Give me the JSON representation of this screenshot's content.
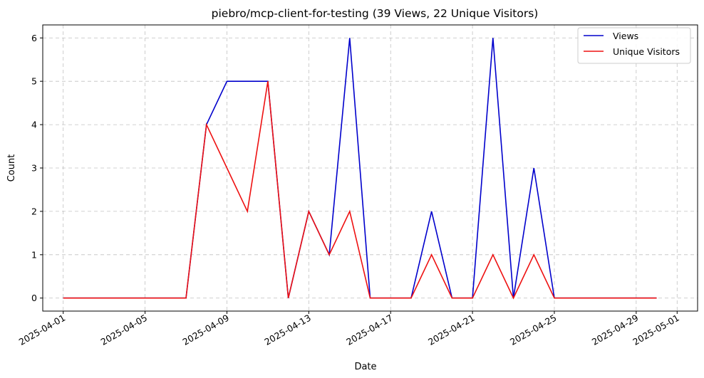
{
  "chart_data": {
    "type": "line",
    "title": "piebro/mcp-client-for-testing (39 Views, 22 Unique Visitors)",
    "xlabel": "Date",
    "ylabel": "Count",
    "x": [
      "2025-04-01",
      "2025-04-02",
      "2025-04-03",
      "2025-04-04",
      "2025-04-05",
      "2025-04-06",
      "2025-04-07",
      "2025-04-08",
      "2025-04-09",
      "2025-04-10",
      "2025-04-11",
      "2025-04-12",
      "2025-04-13",
      "2025-04-14",
      "2025-04-15",
      "2025-04-16",
      "2025-04-17",
      "2025-04-18",
      "2025-04-19",
      "2025-04-20",
      "2025-04-21",
      "2025-04-22",
      "2025-04-23",
      "2025-04-24",
      "2025-04-25",
      "2025-04-26",
      "2025-04-27",
      "2025-04-28",
      "2025-04-29",
      "2025-04-30"
    ],
    "series": [
      {
        "name": "Views",
        "color": "#0000cc",
        "values": [
          0,
          0,
          0,
          0,
          0,
          0,
          0,
          4,
          5,
          5,
          5,
          0,
          2,
          1,
          6,
          0,
          0,
          0,
          2,
          0,
          0,
          6,
          0,
          3,
          0,
          0,
          0,
          0,
          0,
          0
        ]
      },
      {
        "name": "Unique Visitors",
        "color": "#ee1111",
        "values": [
          0,
          0,
          0,
          0,
          0,
          0,
          0,
          4,
          3,
          2,
          5,
          0,
          2,
          1,
          2,
          0,
          0,
          0,
          1,
          0,
          0,
          1,
          0,
          1,
          0,
          0,
          0,
          0,
          0,
          0
        ]
      }
    ],
    "xticks": [
      "2025-04-01",
      "2025-04-05",
      "2025-04-09",
      "2025-04-13",
      "2025-04-17",
      "2025-04-21",
      "2025-04-25",
      "2025-04-29",
      "2025-05-01"
    ],
    "yticks": [
      0,
      1,
      2,
      3,
      4,
      5,
      6
    ],
    "xlim": [
      "2025-03-31",
      "2025-05-02"
    ],
    "ylim": [
      -0.3,
      6.3
    ],
    "grid": true,
    "legend_position": "top-right"
  }
}
